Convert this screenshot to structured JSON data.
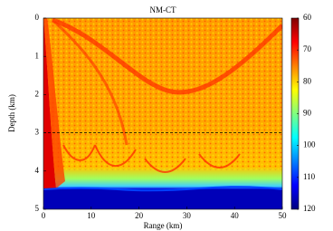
{
  "chart_data": {
    "type": "heatmap",
    "title": "NM-CT",
    "x_label": "Range (km)",
    "y_label": "Depth (km)",
    "xlim": [
      0,
      50
    ],
    "xticks": [
      0,
      10,
      20,
      30,
      40,
      50
    ],
    "ylim": [
      0,
      5
    ],
    "yticks": [
      0,
      1,
      2,
      3,
      4,
      5
    ],
    "y_inverted": true,
    "colorbar_lim": [
      60,
      120
    ],
    "colorbar_ticks": [
      60,
      70,
      80,
      90,
      100,
      110,
      120
    ],
    "colormap": [
      "#7f0000",
      "#ff0000",
      "#ff8000",
      "#ffff00",
      "#80ff80",
      "#00ffff",
      "#0080ff",
      "#0000ff",
      "#00007f"
    ],
    "reference_depth": 3
  }
}
